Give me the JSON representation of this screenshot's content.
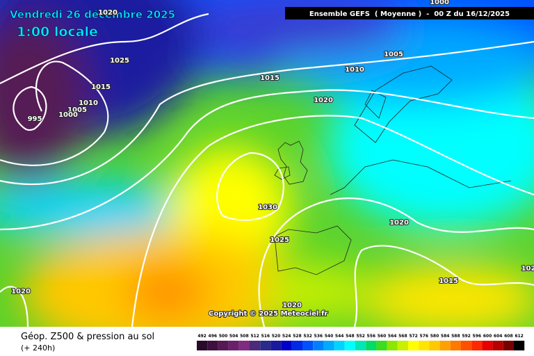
{
  "header": {
    "date": "Vendredi 26 décembre 2025",
    "time": "1:00 locale",
    "model": "Ensemble GEFS  ( Moyenne )  -  00 Z du 16/12/2025"
  },
  "isobar_labels": [
    "1020",
    "1025",
    "1015",
    "1010",
    "1005",
    "1000",
    "995",
    "1005",
    "1010",
    "1015",
    "1020",
    "1030",
    "1025",
    "1020",
    "1015",
    "1020",
    "1020",
    "1000",
    "102"
  ],
  "copyright": "Copyright © 2025 Meteociel.fr",
  "footer": {
    "title": "Géop. Z500 & pression au sol",
    "lead": "(+ 240h)"
  },
  "legend": {
    "labels": [
      492,
      496,
      500,
      504,
      508,
      512,
      516,
      520,
      524,
      528,
      532,
      536,
      540,
      544,
      548,
      552,
      556,
      560,
      564,
      568,
      572,
      576,
      580,
      584,
      588,
      592,
      596,
      600,
      604,
      608,
      612
    ],
    "colors": [
      "#2a0a2a",
      "#3f0f3f",
      "#551a55",
      "#6b206b",
      "#802a80",
      "#4b2a7a",
      "#2a2a8a",
      "#1a1aa0",
      "#0000c8",
      "#0028e6",
      "#0050ff",
      "#0080ff",
      "#00aaff",
      "#00d4ff",
      "#00ffff",
      "#00e6b4",
      "#00dc64",
      "#3cdc1e",
      "#8ce600",
      "#c8f000",
      "#ffff00",
      "#ffe600",
      "#ffc800",
      "#ffa000",
      "#ff7800",
      "#ff5000",
      "#ff2800",
      "#e60000",
      "#b40000",
      "#780000",
      "#000000"
    ]
  }
}
